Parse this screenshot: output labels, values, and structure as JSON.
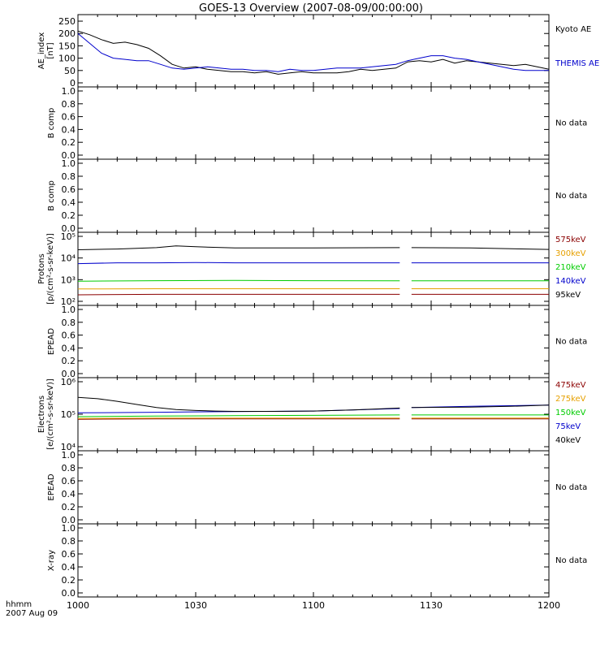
{
  "title": "GOES-13 Overview (2007-08-09/00:00:00)",
  "footer": {
    "line1": "hhmm",
    "line2": "2007 Aug 09"
  },
  "x_ticks": [
    {
      "t": 0,
      "label": "1000"
    },
    {
      "t": 30,
      "label": "1030"
    },
    {
      "t": 60,
      "label": "1100"
    },
    {
      "t": 90,
      "label": "1130"
    },
    {
      "t": 120,
      "label": "1200"
    }
  ],
  "colors": {
    "black": "#000000",
    "blue": "#0000cc",
    "green": "#00cc00",
    "orange": "#e6a000",
    "red": "#8b0000",
    "nodata": "#000000"
  },
  "chart_data": [
    {
      "type": "line",
      "id": "ae",
      "ylabel": [
        "AE_index",
        "[nT]"
      ],
      "ylim": [
        0,
        260
      ],
      "yticks": [
        0,
        50,
        100,
        150,
        200,
        250
      ],
      "scale": "linear",
      "x_units": "minutes after 10:00 UT",
      "series": [
        {
          "name": "Kyoto AE",
          "color": "#000000",
          "x": [
            0,
            3,
            6,
            9,
            12,
            15,
            18,
            21,
            24,
            27,
            30,
            33,
            36,
            39,
            42,
            45,
            48,
            51,
            54,
            57,
            60,
            63,
            66,
            69,
            72,
            75,
            78,
            81,
            84,
            87,
            90,
            93,
            96,
            99,
            102,
            105,
            108,
            111,
            114,
            117,
            120
          ],
          "y": [
            210,
            195,
            175,
            160,
            165,
            155,
            140,
            110,
            75,
            60,
            65,
            55,
            50,
            45,
            45,
            40,
            45,
            35,
            40,
            45,
            40,
            40,
            40,
            45,
            55,
            50,
            55,
            60,
            85,
            90,
            85,
            95,
            80,
            90,
            85,
            80,
            75,
            70,
            75,
            65,
            55
          ]
        },
        {
          "name": "THEMIS AE",
          "color": "#0000cc",
          "x": [
            0,
            3,
            6,
            9,
            12,
            15,
            18,
            21,
            24,
            27,
            30,
            33,
            36,
            39,
            42,
            45,
            48,
            51,
            54,
            57,
            60,
            63,
            66,
            69,
            72,
            75,
            78,
            81,
            84,
            87,
            90,
            93,
            96,
            99,
            102,
            105,
            108,
            111,
            114,
            117,
            120
          ],
          "y": [
            200,
            160,
            120,
            100,
            95,
            90,
            90,
            75,
            60,
            55,
            60,
            65,
            60,
            55,
            55,
            50,
            50,
            45,
            55,
            50,
            50,
            55,
            60,
            60,
            60,
            65,
            70,
            75,
            90,
            100,
            110,
            110,
            100,
            95,
            85,
            75,
            65,
            55,
            50,
            50,
            50
          ]
        }
      ]
    },
    {
      "type": "line",
      "id": "b1",
      "ylabel": [
        "B comp"
      ],
      "ylim": [
        0,
        1
      ],
      "yticks": [
        0,
        0.2,
        0.4,
        0.6,
        0.8,
        1.0
      ],
      "tick_labels": [
        "0.0",
        "0.2",
        "0.4",
        "0.6",
        "0.8",
        "1.0"
      ],
      "scale": "linear",
      "nodata": "No data",
      "series": []
    },
    {
      "type": "line",
      "id": "b2",
      "ylabel": [
        "B comp"
      ],
      "ylim": [
        0,
        1
      ],
      "yticks": [
        0,
        0.2,
        0.4,
        0.6,
        0.8,
        1.0
      ],
      "tick_labels": [
        "0.0",
        "0.2",
        "0.4",
        "0.6",
        "0.8",
        "1.0"
      ],
      "scale": "linear",
      "nodata": "No data",
      "series": []
    },
    {
      "type": "line",
      "id": "protons",
      "ylabel": [
        "Protons",
        "[p/(cm²-s-sr-keV)]"
      ],
      "ylim": [
        100,
        100000
      ],
      "yticks": [
        100,
        1000,
        10000,
        100000
      ],
      "tick_labels": [
        "10²",
        "10³",
        "10⁴",
        "10⁵"
      ],
      "scale": "log",
      "gap": [
        82,
        85
      ],
      "series": [
        {
          "name": "575keV",
          "color": "#8b0000",
          "x": [
            0,
            20,
            40,
            60,
            82,
            85,
            100,
            120
          ],
          "y": [
            200,
            210,
            210,
            210,
            210,
            210,
            210,
            210
          ]
        },
        {
          "name": "300keV",
          "color": "#e6a000",
          "x": [
            0,
            20,
            40,
            60,
            82,
            85,
            100,
            120
          ],
          "y": [
            370,
            380,
            380,
            380,
            380,
            380,
            380,
            380
          ]
        },
        {
          "name": "210keV",
          "color": "#00cc00",
          "x": [
            0,
            20,
            40,
            60,
            82,
            85,
            100,
            120
          ],
          "y": [
            850,
            900,
            920,
            900,
            880,
            880,
            880,
            880
          ]
        },
        {
          "name": "140keV",
          "color": "#0000cc",
          "x": [
            0,
            10,
            20,
            30,
            40,
            60,
            82,
            85,
            100,
            120
          ],
          "y": [
            5500,
            6000,
            6000,
            6200,
            6000,
            6000,
            6000,
            6000,
            6000,
            6000
          ]
        },
        {
          "name": "95keV",
          "color": "#000000",
          "x": [
            0,
            10,
            20,
            25,
            30,
            40,
            60,
            82,
            85,
            100,
            120
          ],
          "y": [
            24000,
            26000,
            30000,
            36000,
            33000,
            29000,
            29000,
            30000,
            30000,
            29000,
            25000
          ]
        }
      ]
    },
    {
      "type": "line",
      "id": "epead1",
      "ylabel": [
        "EPEAD"
      ],
      "ylim": [
        0,
        1
      ],
      "yticks": [
        0,
        0.2,
        0.4,
        0.6,
        0.8,
        1.0
      ],
      "tick_labels": [
        "0.0",
        "0.2",
        "0.4",
        "0.6",
        "0.8",
        "1.0"
      ],
      "scale": "linear",
      "nodata": "No data",
      "series": []
    },
    {
      "type": "line",
      "id": "electrons",
      "ylabel": [
        "Electrons",
        "[e/(cm²-s-sr-keV)]"
      ],
      "ylim": [
        10000,
        1000000
      ],
      "yticks": [
        10000,
        100000,
        1000000
      ],
      "tick_labels": [
        "10⁴",
        "10⁵",
        "10⁶"
      ],
      "scale": "log",
      "gap": [
        82,
        85
      ],
      "series": [
        {
          "name": "475keV",
          "color": "#8b0000",
          "x": [
            0,
            20,
            40,
            60,
            82,
            85,
            100,
            120
          ],
          "y": [
            70000,
            72000,
            72000,
            72000,
            72000,
            72000,
            72000,
            72000
          ]
        },
        {
          "name": "275keV",
          "color": "#e6a000",
          "x": [
            0,
            20,
            40,
            60,
            82,
            85,
            100,
            120
          ],
          "y": [
            74000,
            76000,
            76000,
            76000,
            76000,
            76000,
            76000,
            76000
          ]
        },
        {
          "name": "150keV",
          "color": "#00cc00",
          "x": [
            0,
            20,
            40,
            60,
            82,
            85,
            100,
            120
          ],
          "y": [
            84000,
            88000,
            90000,
            92000,
            95000,
            95000,
            95000,
            95000
          ]
        },
        {
          "name": "75keV",
          "color": "#0000cc",
          "x": [
            0,
            20,
            30,
            40,
            60,
            70,
            82,
            85,
            100,
            120
          ],
          "y": [
            110000,
            115000,
            118000,
            120000,
            125000,
            135000,
            150000,
            160000,
            175000,
            190000
          ]
        },
        {
          "name": "40keV",
          "color": "#000000",
          "x": [
            0,
            5,
            10,
            15,
            20,
            25,
            30,
            35,
            40,
            50,
            60,
            70,
            82,
            85,
            100,
            110,
            120
          ],
          "y": [
            330000,
            300000,
            250000,
            200000,
            160000,
            140000,
            130000,
            125000,
            122000,
            122000,
            125000,
            135000,
            155000,
            160000,
            165000,
            175000,
            190000
          ]
        }
      ]
    },
    {
      "type": "line",
      "id": "epead2",
      "ylabel": [
        "EPEAD"
      ],
      "ylim": [
        0,
        1
      ],
      "yticks": [
        0,
        0.2,
        0.4,
        0.6,
        0.8,
        1.0
      ],
      "tick_labels": [
        "0.0",
        "0.2",
        "0.4",
        "0.6",
        "0.8",
        "1.0"
      ],
      "scale": "linear",
      "nodata": "No data",
      "series": []
    },
    {
      "type": "line",
      "id": "xray",
      "ylabel": [
        "X-ray"
      ],
      "ylim": [
        0,
        1
      ],
      "yticks": [
        0,
        0.2,
        0.4,
        0.6,
        0.8,
        1.0
      ],
      "tick_labels": [
        "0.0",
        "0.2",
        "0.4",
        "0.6",
        "0.8",
        "1.0"
      ],
      "scale": "linear",
      "nodata": "No data",
      "series": []
    }
  ]
}
